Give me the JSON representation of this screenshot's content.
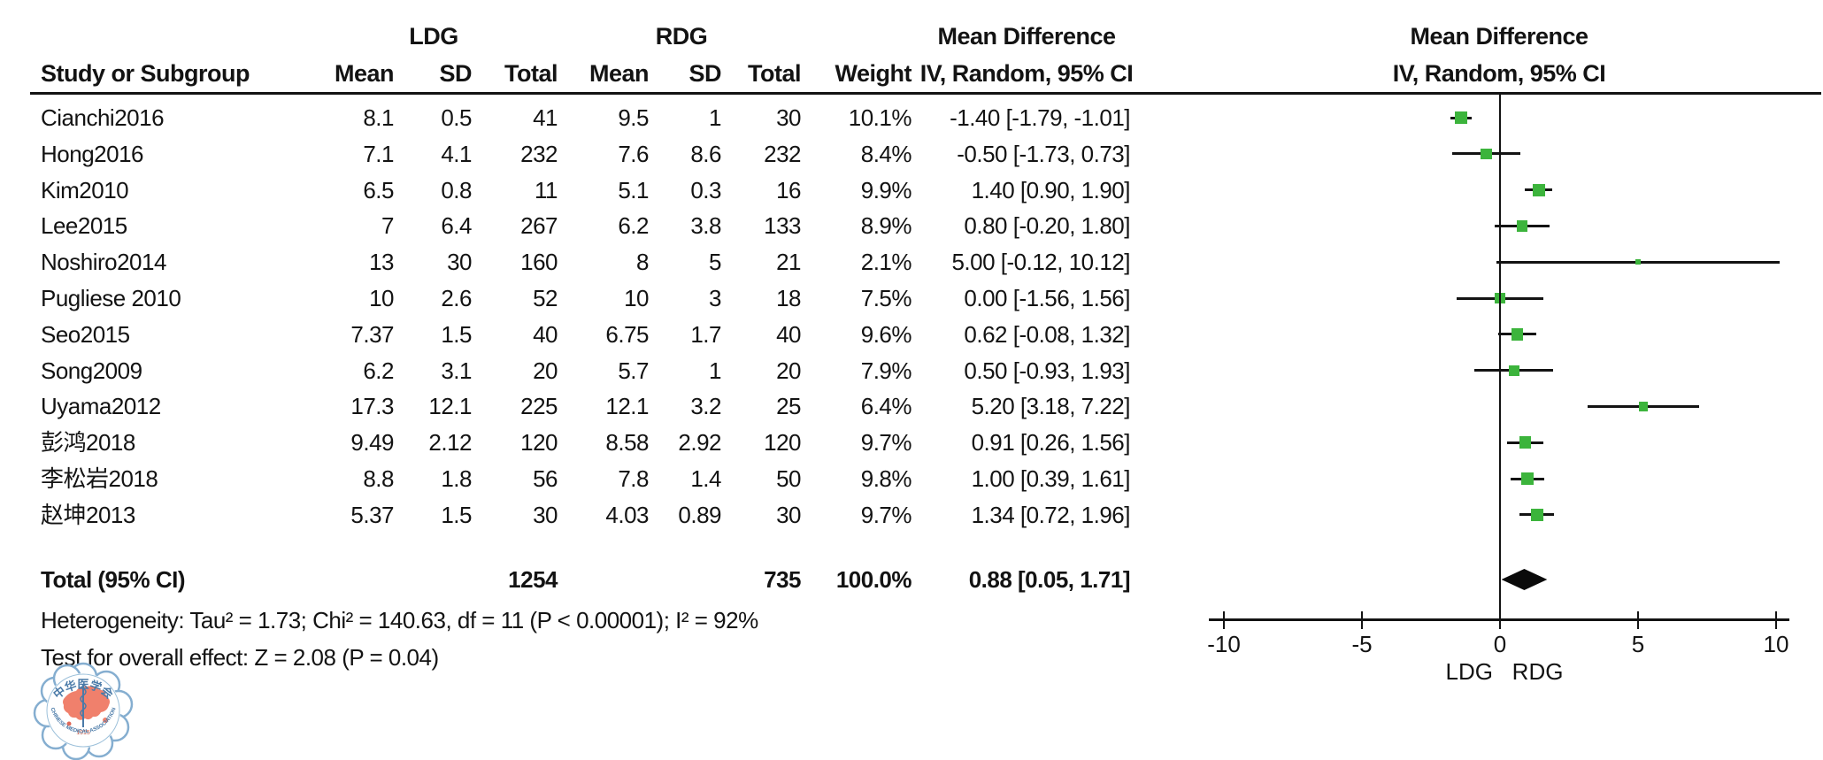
{
  "header": {
    "group1_label": "LDG",
    "group2_label": "RDG",
    "effect_header_line1": "Mean Difference",
    "effect_header_line2": "IV, Random, 95% CI",
    "plot_header_line1": "Mean Difference",
    "plot_header_line2": "IV, Random, 95% CI",
    "columns": {
      "study": "Study or Subgroup",
      "mean": "Mean",
      "sd": "SD",
      "total": "Total",
      "weight": "Weight"
    }
  },
  "total_row": {
    "label": "Total (95% CI)",
    "group1_total": "1254",
    "group2_total": "735",
    "weight": "100.0%",
    "ci_text": "0.88 [0.05, 1.71]"
  },
  "footer": {
    "heterogeneity": "Heterogeneity: Tau² = 1.73; Chi² = 140.63, df = 11 (P < 0.00001); I² = 92%",
    "overall_effect": "Test for overall effect: Z = 2.08 (P = 0.04)"
  },
  "axis": {
    "ticks": [
      -10,
      -5,
      0,
      5,
      10
    ],
    "left_group_label": "LDG",
    "right_group_label": "RDG"
  },
  "logo": {
    "top_text": "中华医学会",
    "bottom_text": "CHINESE MEDICAL ASSOCIATION",
    "year": "1915"
  },
  "colors": {
    "marker_green": "#3cb43c",
    "line_black": "#131313",
    "diamond_black": "#0a0a0a",
    "logo_blue": "#6f9fc4",
    "logo_red": "#f0806c"
  },
  "chart_data": {
    "type": "scatter",
    "subtype": "forest-plot",
    "effect_measure": "Mean Difference, IV, Random, 95% CI",
    "xlim": [
      -10,
      10
    ],
    "axis_ticks": [
      -10,
      -5,
      0,
      5,
      10
    ],
    "favors_left": "LDG",
    "favors_right": "RDG",
    "studies": [
      {
        "name": "Cianchi2016",
        "ldg": {
          "mean": "8.1",
          "sd": "0.5",
          "total": "41"
        },
        "rdg": {
          "mean": "9.5",
          "sd": "1",
          "total": "30"
        },
        "weight": "10.1%",
        "weight_val": 10.1,
        "md": -1.4,
        "lo": -1.79,
        "hi": -1.01,
        "ci_text": "-1.40 [-1.79, -1.01]"
      },
      {
        "name": "Hong2016",
        "ldg": {
          "mean": "7.1",
          "sd": "4.1",
          "total": "232"
        },
        "rdg": {
          "mean": "7.6",
          "sd": "8.6",
          "total": "232"
        },
        "weight": "8.4%",
        "weight_val": 8.4,
        "md": -0.5,
        "lo": -1.73,
        "hi": 0.73,
        "ci_text": "-0.50 [-1.73, 0.73]"
      },
      {
        "name": "Kim2010",
        "ldg": {
          "mean": "6.5",
          "sd": "0.8",
          "total": "11"
        },
        "rdg": {
          "mean": "5.1",
          "sd": "0.3",
          "total": "16"
        },
        "weight": "9.9%",
        "weight_val": 9.9,
        "md": 1.4,
        "lo": 0.9,
        "hi": 1.9,
        "ci_text": "1.40 [0.90, 1.90]"
      },
      {
        "name": "Lee2015",
        "ldg": {
          "mean": "7",
          "sd": "6.4",
          "total": "267"
        },
        "rdg": {
          "mean": "6.2",
          "sd": "3.8",
          "total": "133"
        },
        "weight": "8.9%",
        "weight_val": 8.9,
        "md": 0.8,
        "lo": -0.2,
        "hi": 1.8,
        "ci_text": "0.80 [-0.20, 1.80]"
      },
      {
        "name": "Noshiro2014",
        "ldg": {
          "mean": "13",
          "sd": "30",
          "total": "160"
        },
        "rdg": {
          "mean": "8",
          "sd": "5",
          "total": "21"
        },
        "weight": "2.1%",
        "weight_val": 2.1,
        "md": 5.0,
        "lo": -0.12,
        "hi": 10.12,
        "ci_text": "5.00 [-0.12, 10.12]"
      },
      {
        "name": "Pugliese 2010",
        "ldg": {
          "mean": "10",
          "sd": "2.6",
          "total": "52"
        },
        "rdg": {
          "mean": "10",
          "sd": "3",
          "total": "18"
        },
        "weight": "7.5%",
        "weight_val": 7.5,
        "md": 0.0,
        "lo": -1.56,
        "hi": 1.56,
        "ci_text": "0.00 [-1.56, 1.56]"
      },
      {
        "name": "Seo2015",
        "ldg": {
          "mean": "7.37",
          "sd": "1.5",
          "total": "40"
        },
        "rdg": {
          "mean": "6.75",
          "sd": "1.7",
          "total": "40"
        },
        "weight": "9.6%",
        "weight_val": 9.6,
        "md": 0.62,
        "lo": -0.08,
        "hi": 1.32,
        "ci_text": "0.62 [-0.08, 1.32]"
      },
      {
        "name": "Song2009",
        "ldg": {
          "mean": "6.2",
          "sd": "3.1",
          "total": "20"
        },
        "rdg": {
          "mean": "5.7",
          "sd": "1",
          "total": "20"
        },
        "weight": "7.9%",
        "weight_val": 7.9,
        "md": 0.5,
        "lo": -0.93,
        "hi": 1.93,
        "ci_text": "0.50 [-0.93, 1.93]"
      },
      {
        "name": "Uyama2012",
        "ldg": {
          "mean": "17.3",
          "sd": "12.1",
          "total": "225"
        },
        "rdg": {
          "mean": "12.1",
          "sd": "3.2",
          "total": "25"
        },
        "weight": "6.4%",
        "weight_val": 6.4,
        "md": 5.2,
        "lo": 3.18,
        "hi": 7.22,
        "ci_text": "5.20 [3.18, 7.22]"
      },
      {
        "name": "彭鸿2018",
        "ldg": {
          "mean": "9.49",
          "sd": "2.12",
          "total": "120"
        },
        "rdg": {
          "mean": "8.58",
          "sd": "2.92",
          "total": "120"
        },
        "weight": "9.7%",
        "weight_val": 9.7,
        "md": 0.91,
        "lo": 0.26,
        "hi": 1.56,
        "ci_text": "0.91 [0.26, 1.56]"
      },
      {
        "name": "李松岩2018",
        "ldg": {
          "mean": "8.8",
          "sd": "1.8",
          "total": "56"
        },
        "rdg": {
          "mean": "7.8",
          "sd": "1.4",
          "total": "50"
        },
        "weight": "9.8%",
        "weight_val": 9.8,
        "md": 1.0,
        "lo": 0.39,
        "hi": 1.61,
        "ci_text": "1.00 [0.39, 1.61]"
      },
      {
        "name": "赵坤2013",
        "ldg": {
          "mean": "5.37",
          "sd": "1.5",
          "total": "30"
        },
        "rdg": {
          "mean": "4.03",
          "sd": "0.89",
          "total": "30"
        },
        "weight": "9.7%",
        "weight_val": 9.7,
        "md": 1.34,
        "lo": 0.72,
        "hi": 1.96,
        "ci_text": "1.34 [0.72, 1.96]"
      }
    ],
    "pooled": {
      "md": 0.88,
      "lo": 0.05,
      "hi": 1.71,
      "ci_text": "0.88 [0.05, 1.71]",
      "ldg_total": 1254,
      "rdg_total": 735,
      "weight": "100.0%"
    }
  }
}
